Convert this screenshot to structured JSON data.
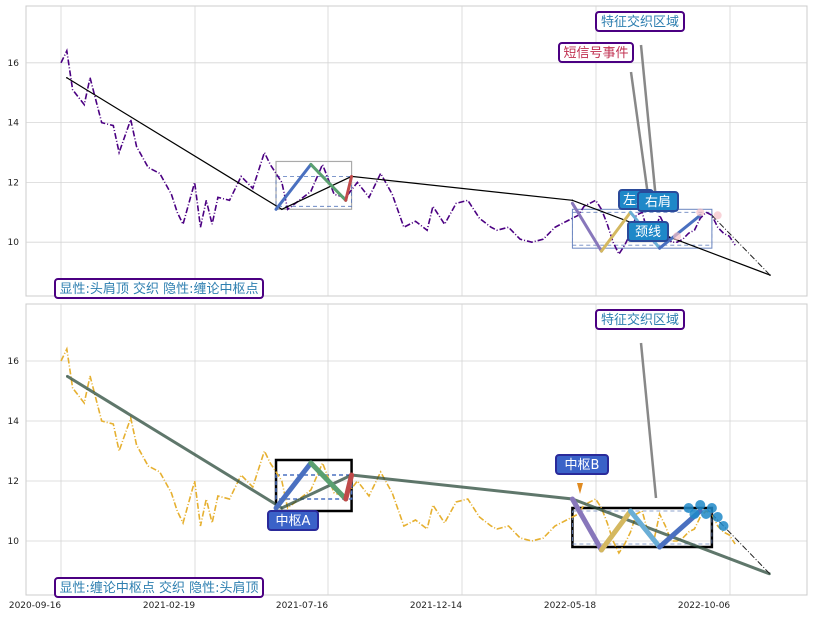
{
  "chart_data": [
    {
      "type": "line",
      "panel": "top",
      "title": "",
      "xlabel": "",
      "ylabel": "",
      "x_ticks": [
        "2020-09-16",
        "2021-02-19",
        "2021-07-16",
        "2021-12-14",
        "2022-05-18",
        "2022-10-06"
      ],
      "y_ticks": [
        10,
        12,
        14,
        16
      ],
      "ylim": [
        8.2,
        17.9
      ],
      "grid": true,
      "colors": {
        "price": "#4b0082",
        "trend": "#000000",
        "hub_box": "#999999",
        "hub_mid": "#5577bb"
      },
      "series": [
        {
          "values": [
            [
              0,
              16.0
            ],
            [
              1,
              16.4
            ],
            [
              2,
              15.1
            ],
            [
              4,
              14.6
            ],
            [
              5,
              15.5
            ],
            [
              7,
              14.0
            ],
            [
              9,
              13.9
            ],
            [
              10,
              13.0
            ],
            [
              12,
              14.1
            ],
            [
              13,
              13.2
            ],
            [
              15,
              12.5
            ],
            [
              17,
              12.3
            ],
            [
              19,
              11.6
            ],
            [
              20,
              11.0
            ],
            [
              21,
              10.6
            ],
            [
              23,
              12.0
            ],
            [
              24,
              10.5
            ],
            [
              25,
              11.4
            ],
            [
              26,
              10.6
            ],
            [
              27,
              11.5
            ],
            [
              29,
              11.4
            ],
            [
              31,
              12.2
            ],
            [
              33,
              11.8
            ],
            [
              35,
              13.0
            ],
            [
              36,
              12.6
            ],
            [
              38,
              12.0
            ],
            [
              39,
              11.1
            ],
            [
              41,
              11.4
            ],
            [
              43,
              11.7
            ],
            [
              45,
              12.6
            ],
            [
              47,
              11.6
            ],
            [
              49,
              11.5
            ],
            [
              51,
              12.0
            ],
            [
              53,
              11.5
            ],
            [
              55,
              12.3
            ],
            [
              57,
              11.6
            ],
            [
              59,
              10.5
            ],
            [
              61,
              10.7
            ],
            [
              63,
              10.4
            ],
            [
              64,
              11.2
            ],
            [
              66,
              10.6
            ],
            [
              68,
              11.3
            ],
            [
              70,
              11.4
            ],
            [
              72,
              10.8
            ],
            [
              74,
              10.5
            ],
            [
              75,
              10.4
            ],
            [
              77,
              10.5
            ],
            [
              79,
              10.1
            ],
            [
              81,
              10.0
            ],
            [
              83,
              10.1
            ],
            [
              85,
              10.5
            ],
            [
              87,
              10.7
            ],
            [
              89,
              10.9
            ],
            [
              90,
              11.2
            ],
            [
              92,
              11.4
            ],
            [
              93,
              11.1
            ],
            [
              94,
              10.6
            ],
            [
              95,
              10.0
            ],
            [
              96,
              9.6
            ],
            [
              97,
              9.9
            ],
            [
              98,
              10.3
            ],
            [
              99,
              10.9
            ],
            [
              100,
              11.0
            ],
            [
              101,
              10.3
            ],
            [
              102,
              10.0
            ],
            [
              103,
              10.9
            ],
            [
              104,
              10.5
            ],
            [
              105,
              10.0
            ],
            [
              106,
              10.0
            ],
            [
              107,
              10.1
            ],
            [
              108,
              10.3
            ],
            [
              109,
              10.4
            ],
            [
              110,
              10.8
            ],
            [
              111,
              11.0
            ],
            [
              112,
              10.9
            ],
            [
              113,
              10.5
            ],
            [
              114,
              10.3
            ],
            [
              115,
              10.2
            ],
            [
              116,
              9.9
            ]
          ]
        },
        {
          "values": [
            [
              1,
              15.5
            ],
            [
              38,
              11.1
            ],
            [
              50,
              12.2
            ],
            [
              88,
              11.4
            ],
            [
              122,
              8.9
            ]
          ]
        }
      ],
      "hub": {
        "x_range": [
          37,
          50
        ],
        "box_range": [
          11.1,
          12.7
        ],
        "mid_range": [
          11.2,
          12.2
        ]
      },
      "hub2": {
        "x_range": [
          88,
          112
        ],
        "box_range": [
          9.8,
          11.1
        ],
        "mid_range": [
          9.9,
          11.0
        ]
      },
      "legs": [
        [
          [
            37,
            11.1
          ],
          [
            43,
            12.6
          ]
        ],
        [
          [
            43,
            12.6
          ],
          [
            49,
            11.4
          ]
        ],
        [
          [
            49,
            11.4
          ],
          [
            50,
            12.2
          ]
        ]
      ],
      "legs2": [
        [
          [
            88,
            11.3
          ],
          [
            93,
            9.7
          ]
        ],
        [
          [
            93,
            9.7
          ],
          [
            98,
            11.0
          ]
        ],
        [
          [
            98,
            11.0
          ],
          [
            103,
            9.8
          ]
        ],
        [
          [
            103,
            9.8
          ],
          [
            110,
            10.9
          ]
        ]
      ],
      "annotations": {
        "explicit_implicit": "显性:头肩顶 交织 隐性:缠论中枢点",
        "feature_zone": "特征交织区域",
        "short_signal": "短信号事件",
        "left_shoulder": "左肩",
        "right_shoulder": "右肩",
        "neckline": "颈线"
      }
    },
    {
      "type": "line",
      "panel": "bottom",
      "title": "",
      "xlabel": "",
      "ylabel": "",
      "x_ticks": [
        "2020-09-16",
        "2021-02-19",
        "2021-07-16",
        "2021-12-14",
        "2022-05-18",
        "2022-10-06"
      ],
      "y_ticks": [
        10,
        12,
        14,
        16
      ],
      "ylim": [
        8.2,
        17.9
      ],
      "grid": true,
      "colors": {
        "price": "#e6b030",
        "trend": "#2a4a3a",
        "hub_box": "#000000",
        "hub_mid": "#4a70c0"
      },
      "series": [
        {
          "values": [
            [
              0,
              16.0
            ],
            [
              1,
              16.4
            ],
            [
              2,
              15.1
            ],
            [
              4,
              14.6
            ],
            [
              5,
              15.5
            ],
            [
              7,
              14.0
            ],
            [
              9,
              13.9
            ],
            [
              10,
              13.0
            ],
            [
              12,
              14.1
            ],
            [
              13,
              13.2
            ],
            [
              15,
              12.5
            ],
            [
              17,
              12.3
            ],
            [
              19,
              11.6
            ],
            [
              20,
              11.0
            ],
            [
              21,
              10.6
            ],
            [
              23,
              12.0
            ],
            [
              24,
              10.5
            ],
            [
              25,
              11.4
            ],
            [
              26,
              10.6
            ],
            [
              27,
              11.5
            ],
            [
              29,
              11.4
            ],
            [
              31,
              12.2
            ],
            [
              33,
              11.8
            ],
            [
              35,
              13.0
            ],
            [
              36,
              12.6
            ],
            [
              38,
              12.0
            ],
            [
              39,
              11.1
            ],
            [
              41,
              11.4
            ],
            [
              43,
              11.7
            ],
            [
              45,
              12.6
            ],
            [
              47,
              11.6
            ],
            [
              49,
              11.5
            ],
            [
              51,
              12.0
            ],
            [
              53,
              11.5
            ],
            [
              55,
              12.3
            ],
            [
              57,
              11.6
            ],
            [
              59,
              10.5
            ],
            [
              61,
              10.7
            ],
            [
              63,
              10.4
            ],
            [
              64,
              11.2
            ],
            [
              66,
              10.6
            ],
            [
              68,
              11.3
            ],
            [
              70,
              11.4
            ],
            [
              72,
              10.8
            ],
            [
              74,
              10.5
            ],
            [
              75,
              10.4
            ],
            [
              77,
              10.5
            ],
            [
              79,
              10.1
            ],
            [
              81,
              10.0
            ],
            [
              83,
              10.1
            ],
            [
              85,
              10.5
            ],
            [
              87,
              10.7
            ],
            [
              89,
              10.9
            ],
            [
              90,
              11.2
            ],
            [
              92,
              11.4
            ],
            [
              93,
              11.1
            ],
            [
              94,
              10.6
            ],
            [
              95,
              10.0
            ],
            [
              96,
              9.6
            ],
            [
              97,
              9.9
            ],
            [
              98,
              10.3
            ],
            [
              99,
              10.9
            ],
            [
              100,
              11.0
            ],
            [
              101,
              10.3
            ],
            [
              102,
              10.0
            ],
            [
              103,
              10.9
            ],
            [
              104,
              10.5
            ],
            [
              105,
              10.0
            ],
            [
              106,
              10.0
            ],
            [
              107,
              10.1
            ],
            [
              108,
              10.3
            ],
            [
              109,
              10.4
            ],
            [
              110,
              10.8
            ],
            [
              111,
              11.0
            ],
            [
              112,
              10.9
            ],
            [
              113,
              10.5
            ],
            [
              114,
              10.3
            ],
            [
              115,
              10.2
            ],
            [
              116,
              9.9
            ]
          ]
        },
        {
          "values": [
            [
              1,
              15.5
            ],
            [
              38,
              11.1
            ],
            [
              50,
              12.2
            ],
            [
              88,
              11.4
            ],
            [
              122,
              8.9
            ]
          ]
        }
      ],
      "hub": {
        "x_range": [
          37,
          50
        ],
        "box_range": [
          11.0,
          12.7
        ],
        "mid_range": [
          11.4,
          12.2
        ]
      },
      "hub2": {
        "x_range": [
          88,
          112
        ],
        "box_range": [
          9.8,
          11.1
        ],
        "mid_range": [
          9.9,
          11.0
        ]
      },
      "legs": [
        [
          [
            37,
            11.1
          ],
          [
            43,
            12.6
          ]
        ],
        [
          [
            43,
            12.6
          ],
          [
            49,
            11.4
          ]
        ],
        [
          [
            49,
            11.4
          ],
          [
            50,
            12.2
          ]
        ]
      ],
      "legs2": [
        [
          [
            88,
            11.4
          ],
          [
            93,
            9.7
          ]
        ],
        [
          [
            93,
            9.7
          ],
          [
            98,
            11.0
          ]
        ],
        [
          [
            98,
            11.0
          ],
          [
            103,
            9.8
          ]
        ],
        [
          [
            103,
            9.8
          ],
          [
            110,
            11.0
          ]
        ]
      ],
      "annotations": {
        "explicit_implicit": "显性:缠论中枢点 交织 隐性:头肩顶",
        "feature_zone": "特征交织区域",
        "hub_a": "中枢A",
        "hub_b": "中枢B"
      }
    }
  ]
}
